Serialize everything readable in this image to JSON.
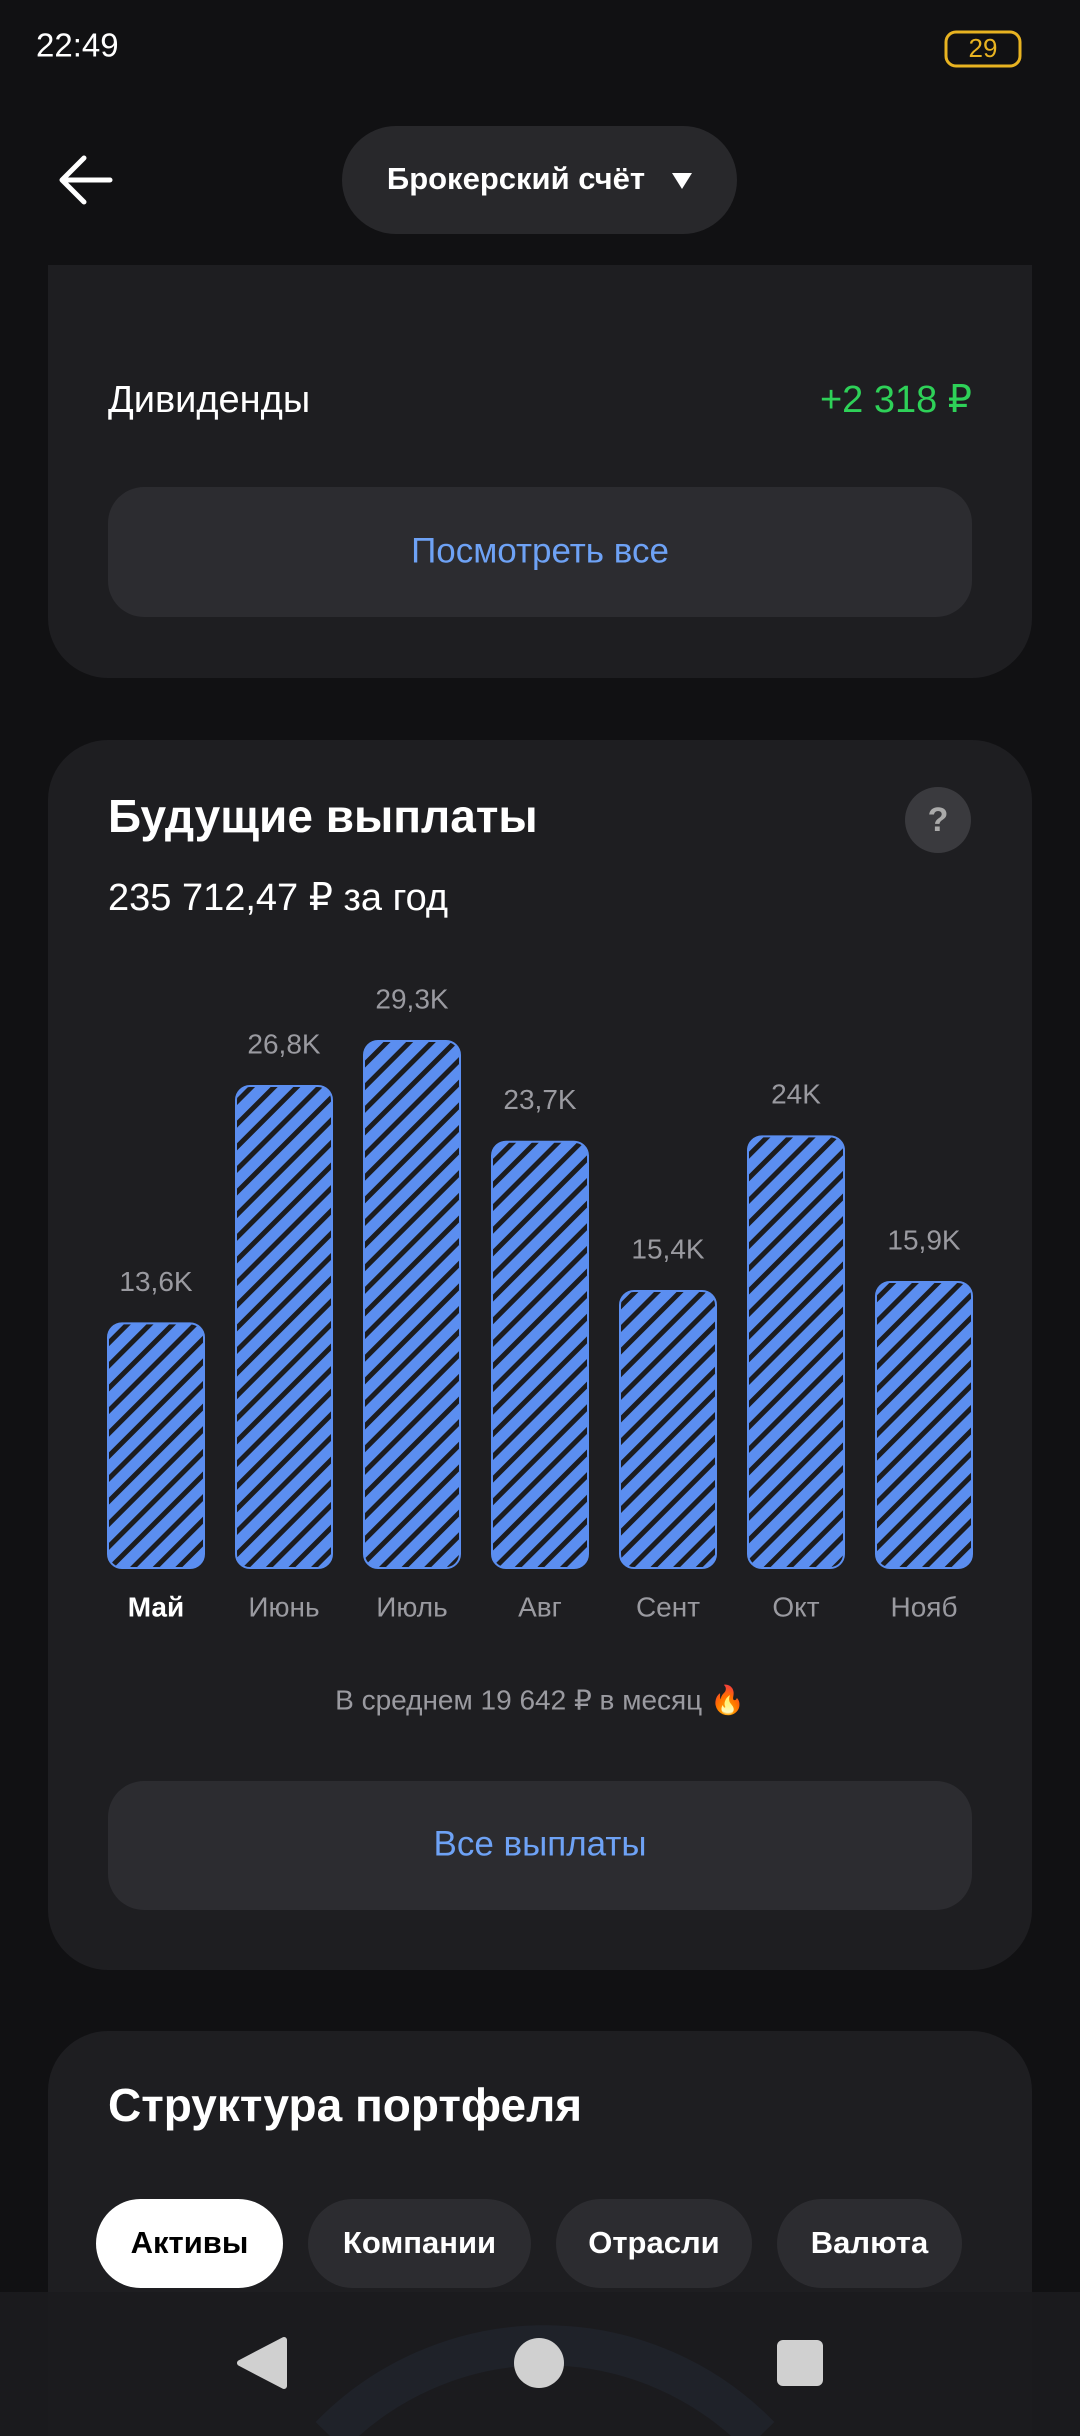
{
  "status_bar": {
    "time": "22:49",
    "battery": "29"
  },
  "header": {
    "account": "Брокерский счёт"
  },
  "dividends": {
    "label": "Дивиденды",
    "amount": "+2 318 ₽",
    "button": "Посмотреть все"
  },
  "future_payouts": {
    "subtitle": "235 712,47 ₽ за год",
    "help": "?",
    "average": "В среднем 19 642 ₽ в месяц 🔥",
    "button": "Все выплаты"
  },
  "chart_data": {
    "type": "bar",
    "title": "Будущие выплаты",
    "categories": [
      "Май",
      "Июнь",
      "Июль",
      "Авг",
      "Сент",
      "Окт",
      "Нояб"
    ],
    "values": [
      13600,
      26800,
      29300,
      23700,
      15400,
      24000,
      15900
    ],
    "value_labels": [
      "13,6K",
      "26,8K",
      "29,3K",
      "23,7K",
      "15,4K",
      "24K",
      "15,9K"
    ],
    "color": "#5b8ef0"
  },
  "portfolio": {
    "title": "Структура портфеля",
    "tabs": [
      "Активы",
      "Компании",
      "Отрасли",
      "Валюта"
    ]
  }
}
